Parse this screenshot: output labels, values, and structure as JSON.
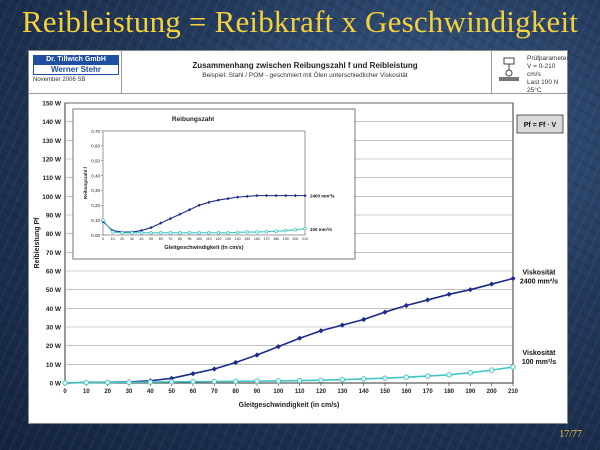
{
  "slide_title": "Reibleistung = Reibkraft x Geschwindigkeit",
  "page_number": "17/77",
  "header": {
    "logo_line1": "Dr. Tillwich GmbH",
    "logo_line2": "Werner Stehr",
    "date": "November 2006 SB",
    "title": "Zusammenhang zwischen Reibungszahl f und Reibleistung",
    "subtitle": "Beispiel: Stahl / POM - geschmiert mit Ölen unterschiedlicher Viskosität",
    "params_title": "Prüfparameter:",
    "param_speed": "V = 0-210 cm/s",
    "param_load": "Last 100 N",
    "param_temp": "25°C"
  },
  "formula": "Pf = Ff · V",
  "colors": {
    "high": "#1c2a8c",
    "low": "#3ec6c6"
  },
  "chart_data": [
    {
      "type": "line",
      "title": "",
      "xlabel": "Gleitgeschwindigkeit (in cm/s)",
      "ylabel": "Reibleistung Pf",
      "x": [
        0,
        10,
        20,
        30,
        40,
        50,
        60,
        70,
        80,
        90,
        100,
        110,
        120,
        130,
        140,
        150,
        160,
        170,
        180,
        190,
        200,
        210
      ],
      "xlim": [
        0,
        210
      ],
      "ylim": [
        0,
        150
      ],
      "yticks": [
        "0 W",
        "10 W",
        "20 W",
        "30 W",
        "40 W",
        "50 W",
        "60 W",
        "70 W",
        "80 W",
        "90 W",
        "100 W",
        "110 W",
        "120 W",
        "130 W",
        "140 W",
        "150 W"
      ],
      "grid": true,
      "series": [
        {
          "name": "Viskosität 2400 mm²/s",
          "label_line1": "Viskosität",
          "label_line2": "2400 mm²/s",
          "values": [
            0,
            0.3,
            0.4,
            0.6,
            1.2,
            2.5,
            5,
            7.5,
            11,
            15,
            19.5,
            24,
            28,
            31,
            34,
            38,
            41.5,
            44.5,
            47.5,
            50,
            53,
            56
          ]
        },
        {
          "name": "Viskosität 100 mm²/s",
          "label_line1": "Viskosität",
          "label_line2": "100 mm²/s",
          "values": [
            0,
            0.2,
            0.3,
            0.4,
            0.5,
            0.6,
            0.7,
            0.8,
            0.9,
            1.0,
            1.1,
            1.3,
            1.5,
            1.8,
            2.2,
            2.6,
            3.1,
            3.7,
            4.4,
            5.5,
            6.9,
            8.6
          ]
        }
      ]
    },
    {
      "type": "line",
      "title": "Reibungszahl",
      "xlabel": "Gleitgeschwindigkeit (in cm/s)",
      "ylabel": "Reibungszahl f",
      "x": [
        0,
        10,
        20,
        30,
        40,
        50,
        60,
        70,
        80,
        90,
        100,
        110,
        120,
        130,
        140,
        150,
        160,
        170,
        180,
        190,
        200,
        210
      ],
      "xlim": [
        0,
        210
      ],
      "ylim": [
        0,
        0.7
      ],
      "yticks": [
        "0,00",
        "0,10",
        "0,20",
        "0,30",
        "0,40",
        "0,50",
        "0,60",
        "0,70"
      ],
      "grid": false,
      "series": [
        {
          "name": "2400 mm²/s",
          "values": [
            0.09,
            0.03,
            0.02,
            0.02,
            0.03,
            0.05,
            0.08,
            0.11,
            0.14,
            0.17,
            0.2,
            0.22,
            0.235,
            0.245,
            0.255,
            0.26,
            0.265,
            0.265,
            0.265,
            0.265,
            0.265,
            0.265
          ]
        },
        {
          "name": "100 mm²/s",
          "values": [
            0.1,
            0.02,
            0.015,
            0.015,
            0.015,
            0.015,
            0.015,
            0.015,
            0.015,
            0.015,
            0.015,
            0.015,
            0.015,
            0.015,
            0.018,
            0.02,
            0.02,
            0.022,
            0.025,
            0.03,
            0.035,
            0.042
          ]
        }
      ]
    }
  ]
}
